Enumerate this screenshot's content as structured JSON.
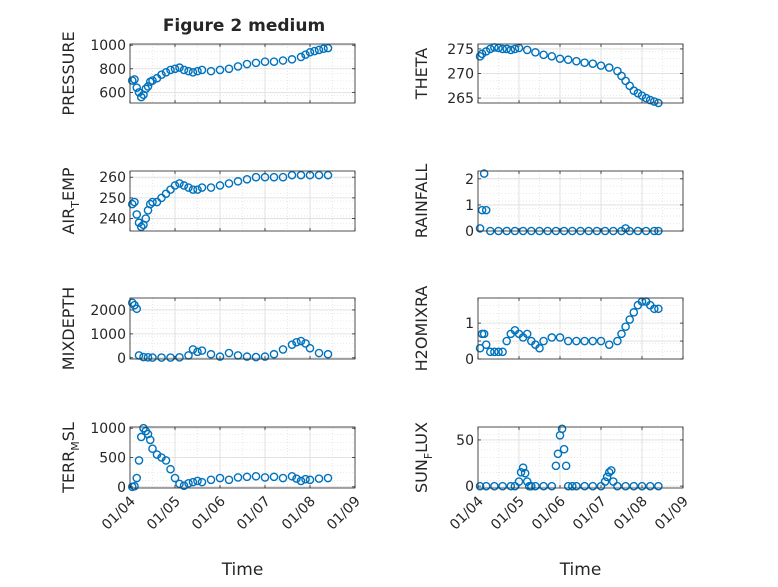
{
  "figure": {
    "title": "Figure 2 medium",
    "x_shared_label": "Time"
  },
  "chart_data": [
    {
      "type": "scatter",
      "id": "pressure",
      "column": "left",
      "title": "Figure 2 medium",
      "ylabel": "PRESSURE",
      "ylabel_sub": "",
      "xlabel": "",
      "xlim": [
        0,
        5
      ],
      "ylim": [
        510,
        1010
      ],
      "yticks": [
        600,
        800,
        1000
      ],
      "xticks": [
        0,
        1,
        2,
        3,
        4,
        5
      ],
      "xticklabels": [],
      "color": "#0072BD",
      "x": [
        0.05,
        0.1,
        0.15,
        0.2,
        0.25,
        0.3,
        0.35,
        0.4,
        0.45,
        0.5,
        0.6,
        0.7,
        0.8,
        0.9,
        1.0,
        1.1,
        1.2,
        1.3,
        1.4,
        1.5,
        1.6,
        1.8,
        2.0,
        2.2,
        2.4,
        2.6,
        2.8,
        3.0,
        3.2,
        3.4,
        3.6,
        3.8,
        3.9,
        4.0,
        4.1,
        4.2,
        4.3,
        4.4
      ],
      "y": [
        700,
        710,
        640,
        600,
        560,
        580,
        630,
        650,
        690,
        700,
        720,
        750,
        770,
        790,
        800,
        810,
        790,
        780,
        770,
        780,
        790,
        780,
        790,
        800,
        820,
        840,
        850,
        860,
        860,
        870,
        880,
        900,
        920,
        940,
        950,
        960,
        970,
        975
      ]
    },
    {
      "type": "scatter",
      "id": "theta",
      "column": "right",
      "ylabel": "THETA",
      "ylabel_sub": "",
      "xlabel": "",
      "xlim": [
        0,
        5
      ],
      "ylim": [
        264,
        276
      ],
      "yticks": [
        265,
        270,
        275
      ],
      "xticks": [
        0,
        1,
        2,
        3,
        4,
        5
      ],
      "xticklabels": [],
      "color": "#0072BD",
      "x": [
        0.05,
        0.1,
        0.2,
        0.3,
        0.4,
        0.5,
        0.6,
        0.7,
        0.8,
        0.9,
        1.0,
        1.2,
        1.4,
        1.6,
        1.8,
        2.0,
        2.2,
        2.4,
        2.6,
        2.8,
        3.0,
        3.2,
        3.4,
        3.5,
        3.6,
        3.7,
        3.8,
        3.9,
        4.0,
        4.1,
        4.2,
        4.3,
        4.4
      ],
      "y": [
        273.5,
        274,
        274.5,
        275,
        275.3,
        275.2,
        275,
        275,
        274.8,
        275,
        275.2,
        274.8,
        274.3,
        273.8,
        273.5,
        273,
        272.8,
        272.5,
        272.2,
        272,
        271.6,
        271.2,
        270.5,
        269.5,
        268.5,
        267.5,
        266.5,
        266,
        265.5,
        265,
        264.6,
        264.3,
        264
      ]
    },
    {
      "type": "scatter",
      "id": "air_temp",
      "column": "left",
      "ylabel": "AIR",
      "ylabel_sub": "T",
      "ylabel_tail": "EMP",
      "xlabel": "",
      "xlim": [
        0,
        5
      ],
      "ylim": [
        234,
        263
      ],
      "yticks": [
        240,
        250,
        260
      ],
      "xticks": [
        0,
        1,
        2,
        3,
        4,
        5
      ],
      "xticklabels": [],
      "color": "#0072BD",
      "x": [
        0.05,
        0.1,
        0.15,
        0.2,
        0.25,
        0.3,
        0.35,
        0.4,
        0.45,
        0.5,
        0.6,
        0.7,
        0.8,
        0.9,
        1.0,
        1.1,
        1.2,
        1.3,
        1.4,
        1.5,
        1.6,
        1.8,
        2.0,
        2.2,
        2.4,
        2.6,
        2.8,
        3.0,
        3.2,
        3.4,
        3.6,
        3.8,
        4.0,
        4.2,
        4.4
      ],
      "y": [
        247,
        248,
        242,
        238,
        236,
        237,
        240,
        244,
        247,
        248,
        248,
        250,
        252,
        254,
        256,
        257,
        256,
        255,
        254,
        254,
        255,
        255,
        256,
        257,
        258,
        259,
        260,
        260,
        260,
        260,
        261,
        261,
        261,
        261,
        261
      ]
    },
    {
      "type": "scatter",
      "id": "rainfall",
      "column": "right",
      "ylabel": "RAINFALL",
      "ylabel_sub": "",
      "xlabel": "",
      "xlim": [
        0,
        5
      ],
      "ylim": [
        0,
        2.3
      ],
      "yticks": [
        0,
        1,
        2
      ],
      "xticks": [
        0,
        1,
        2,
        3,
        4,
        5
      ],
      "xticklabels": [],
      "color": "#0072BD",
      "x": [
        0.05,
        0.1,
        0.15,
        0.2,
        0.3,
        0.5,
        0.7,
        0.9,
        1.1,
        1.3,
        1.5,
        1.7,
        1.9,
        2.1,
        2.3,
        2.5,
        2.7,
        2.9,
        3.1,
        3.3,
        3.5,
        3.6,
        3.7,
        3.9,
        4.1,
        4.3,
        4.4
      ],
      "y": [
        0.1,
        0.8,
        2.2,
        0.8,
        0,
        0,
        0,
        0,
        0,
        0,
        0,
        0,
        0,
        0,
        0,
        0,
        0,
        0,
        0,
        0,
        0,
        0.1,
        0,
        0,
        0,
        0,
        0
      ]
    },
    {
      "type": "scatter",
      "id": "mixdepth",
      "column": "left",
      "ylabel": "MIXDEPTH",
      "ylabel_sub": "",
      "xlabel": "",
      "xlim": [
        0,
        5
      ],
      "ylim": [
        -50,
        2500
      ],
      "yticks": [
        0,
        1000,
        2000
      ],
      "xticks": [
        0,
        1,
        2,
        3,
        4,
        5
      ],
      "xticklabels": [],
      "color": "#0072BD",
      "x": [
        0.05,
        0.1,
        0.15,
        0.2,
        0.3,
        0.4,
        0.5,
        0.7,
        0.9,
        1.1,
        1.3,
        1.4,
        1.5,
        1.6,
        1.8,
        2.0,
        2.2,
        2.4,
        2.6,
        2.8,
        3.0,
        3.2,
        3.4,
        3.6,
        3.7,
        3.8,
        3.9,
        4.0,
        4.2,
        4.4
      ],
      "y": [
        2300,
        2200,
        2050,
        100,
        30,
        20,
        10,
        10,
        10,
        20,
        100,
        350,
        250,
        300,
        150,
        50,
        200,
        100,
        50,
        30,
        50,
        150,
        350,
        550,
        650,
        700,
        600,
        400,
        200,
        150
      ]
    },
    {
      "type": "scatter",
      "id": "h2omixra",
      "column": "right",
      "ylabel": "H2OMIXRA",
      "ylabel_sub": "",
      "xlabel": "",
      "xlim": [
        0,
        5
      ],
      "ylim": [
        0,
        1.7
      ],
      "yticks": [
        0,
        0.5,
        1
      ],
      "yticklabels": [
        "0",
        "",
        "1"
      ],
      "xticks": [
        0,
        1,
        2,
        3,
        4,
        5
      ],
      "xticklabels": [],
      "color": "#0072BD",
      "x": [
        0.05,
        0.1,
        0.15,
        0.2,
        0.3,
        0.4,
        0.5,
        0.6,
        0.7,
        0.8,
        0.9,
        1.0,
        1.1,
        1.2,
        1.3,
        1.4,
        1.5,
        1.6,
        1.8,
        2.0,
        2.2,
        2.4,
        2.6,
        2.8,
        3.0,
        3.2,
        3.4,
        3.5,
        3.6,
        3.7,
        3.8,
        3.9,
        4.0,
        4.1,
        4.2,
        4.3,
        4.4
      ],
      "y": [
        0.3,
        0.7,
        0.7,
        0.4,
        0.2,
        0.2,
        0.2,
        0.2,
        0.5,
        0.7,
        0.8,
        0.7,
        0.6,
        0.7,
        0.5,
        0.4,
        0.3,
        0.5,
        0.6,
        0.6,
        0.5,
        0.5,
        0.5,
        0.5,
        0.5,
        0.4,
        0.5,
        0.7,
        0.9,
        1.1,
        1.3,
        1.5,
        1.6,
        1.6,
        1.5,
        1.4,
        1.4
      ]
    },
    {
      "type": "scatter",
      "id": "terr_msl",
      "column": "left",
      "ylabel": "TERR",
      "ylabel_sub": "M",
      "ylabel_tail": "SL",
      "xlabel": "Time",
      "xlim": [
        0,
        5
      ],
      "ylim": [
        -20,
        1020
      ],
      "yticks": [
        0,
        500,
        1000
      ],
      "xticks": [
        0,
        1,
        2,
        3,
        4,
        5
      ],
      "xticklabels": [
        "01/04",
        "01/05",
        "01/06",
        "01/07",
        "01/08",
        "01/09"
      ],
      "color": "#0072BD",
      "x": [
        0.05,
        0.1,
        0.15,
        0.2,
        0.25,
        0.3,
        0.35,
        0.4,
        0.45,
        0.5,
        0.6,
        0.7,
        0.8,
        0.9,
        1.0,
        1.1,
        1.2,
        1.3,
        1.4,
        1.5,
        1.6,
        1.8,
        2.0,
        2.2,
        2.4,
        2.6,
        2.8,
        3.0,
        3.2,
        3.4,
        3.6,
        3.7,
        3.8,
        3.9,
        4.0,
        4.2,
        4.4
      ],
      "y": [
        0,
        10,
        150,
        450,
        850,
        1000,
        950,
        900,
        800,
        650,
        550,
        500,
        450,
        300,
        150,
        50,
        20,
        60,
        80,
        100,
        80,
        120,
        150,
        120,
        160,
        170,
        180,
        160,
        170,
        150,
        180,
        140,
        100,
        130,
        120,
        140,
        150
      ]
    },
    {
      "type": "scatter",
      "id": "sun_flux",
      "column": "right",
      "ylabel": "SUN",
      "ylabel_sub": "F",
      "ylabel_tail": "LUX",
      "xlabel": "Time",
      "xlim": [
        0,
        5
      ],
      "ylim": [
        -2,
        64
      ],
      "yticks": [
        0,
        50
      ],
      "xticks": [
        0,
        1,
        2,
        3,
        4,
        5
      ],
      "xticklabels": [
        "01/04",
        "01/05",
        "01/06",
        "01/07",
        "01/08",
        "01/09"
      ],
      "color": "#0072BD",
      "x": [
        0.05,
        0.2,
        0.4,
        0.6,
        0.8,
        0.9,
        1.0,
        1.05,
        1.1,
        1.15,
        1.2,
        1.25,
        1.3,
        1.4,
        1.6,
        1.8,
        1.9,
        1.95,
        2.0,
        2.05,
        2.1,
        2.15,
        2.2,
        2.3,
        2.4,
        2.6,
        2.8,
        3.0,
        3.1,
        3.15,
        3.2,
        3.25,
        3.3,
        3.4,
        3.6,
        3.8,
        4.0,
        4.2,
        4.4
      ],
      "y": [
        0,
        0,
        0,
        0,
        0,
        0,
        5,
        15,
        20,
        14,
        5,
        0,
        0,
        0,
        0,
        0,
        22,
        35,
        55,
        62,
        40,
        22,
        0,
        0,
        0,
        0,
        0,
        0,
        5,
        10,
        15,
        17,
        5,
        0,
        0,
        0,
        0,
        0,
        0
      ]
    }
  ]
}
